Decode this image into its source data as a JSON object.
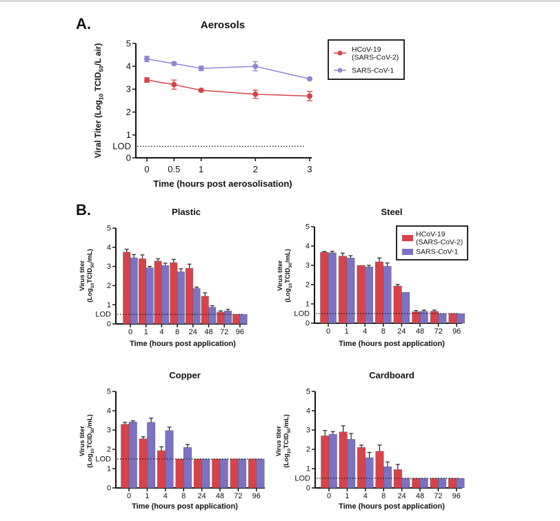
{
  "panel_labels": [
    "A.",
    "B."
  ],
  "colors": {
    "sars_cov_2": "#d8434b",
    "sars_cov_1": "#7b72c4",
    "sars_cov_1_line": "#8f86d6"
  },
  "chart_data": [
    {
      "type": "line",
      "title": "Aerosols",
      "xlabel": "Time (hours post aerosolisation)",
      "ylabel": [
        [
          "Viral Titer (Log",
          ""
        ],
        [
          "10",
          "sub"
        ],
        [
          " TCID",
          ""
        ],
        [
          "50",
          "sub"
        ],
        [
          "/L air)",
          ""
        ]
      ],
      "x": [
        0,
        0.5,
        1,
        2,
        3
      ],
      "xticks": [
        "0",
        "0.5",
        "1",
        "2",
        "3"
      ],
      "yticks": [
        "0",
        "1",
        "2",
        "3",
        "4",
        "5"
      ],
      "ylim": [
        0,
        5
      ],
      "lod": {
        "label": "LOD",
        "value": 0.5
      },
      "legend": "top-right",
      "series": [
        {
          "name": "HCoV-19\n(SARS-CoV-2)",
          "values": [
            3.4,
            3.2,
            2.95,
            2.78,
            2.7
          ],
          "error": [
            0.1,
            0.2,
            0.05,
            0.18,
            0.2
          ]
        },
        {
          "name": "SARS-CoV-1",
          "values": [
            4.32,
            4.12,
            3.91,
            4.0,
            3.45
          ],
          "error": [
            0.12,
            0.06,
            0.1,
            0.2,
            0.04
          ]
        }
      ]
    },
    {
      "type": "bar",
      "title": "Plastic",
      "xlabel": "Time (hours post application)",
      "ylabel": [
        [
          [
            "Virus titer",
            ""
          ]
        ],
        [
          [
            "(Log",
            ""
          ],
          [
            "10",
            "sub"
          ],
          [
            "TCID",
            ""
          ],
          [
            "50",
            "sub"
          ],
          [
            "/mL)",
            ""
          ]
        ]
      ],
      "categories": [
        "0",
        "1",
        "4",
        "8",
        "24",
        "48",
        "72",
        "96"
      ],
      "yticks": [
        "0",
        "1",
        "2",
        "3",
        "4",
        "5"
      ],
      "ylim": [
        0,
        5
      ],
      "lod": {
        "label": "LOD",
        "value": 0.5
      },
      "series": [
        {
          "name": "HCoV-19\n(SARS-CoV-2)",
          "values": [
            3.75,
            3.4,
            3.28,
            3.2,
            2.9,
            1.45,
            0.62,
            0.5
          ],
          "error": [
            0.15,
            0.2,
            0.12,
            0.17,
            0.22,
            0.17,
            0.06,
            0
          ]
        },
        {
          "name": "SARS-CoV-1",
          "values": [
            3.45,
            2.93,
            3.05,
            2.72,
            1.85,
            0.87,
            0.68,
            0.5
          ],
          "error": [
            0.17,
            0.07,
            0.12,
            0.16,
            0.07,
            0.08,
            0.08,
            0
          ]
        }
      ]
    },
    {
      "type": "bar",
      "title": "Steel",
      "xlabel": "Time (hours post application)",
      "ylabel": [
        [
          [
            "Virus titer",
            ""
          ]
        ],
        [
          [
            "(Log",
            ""
          ],
          [
            "10",
            "sub"
          ],
          [
            "TCID",
            ""
          ],
          [
            "50",
            "sub"
          ],
          [
            "/mL)",
            ""
          ]
        ]
      ],
      "categories": [
        "0",
        "1",
        "4",
        "8",
        "24",
        "48",
        "72",
        "96"
      ],
      "yticks": [
        "0",
        "1",
        "2",
        "3",
        "4",
        "5"
      ],
      "ylim": [
        0,
        5
      ],
      "lod": {
        "label": "LOD",
        "value": 0.5
      },
      "legend": "top-right",
      "series": [
        {
          "name": "HCoV-19\n(SARS-CoV-2)",
          "values": [
            3.68,
            3.48,
            3.0,
            3.18,
            1.93,
            0.6,
            0.62,
            0.5
          ],
          "error": [
            0.04,
            0.15,
            0,
            0.2,
            0.08,
            0.06,
            0.06,
            0
          ]
        },
        {
          "name": "SARS-CoV-1",
          "values": [
            3.65,
            3.38,
            2.92,
            2.95,
            1.6,
            0.62,
            0.5,
            0.5
          ],
          "error": [
            0.08,
            0.12,
            0.08,
            0.17,
            0,
            0.06,
            0,
            0
          ]
        }
      ]
    },
    {
      "type": "bar",
      "title": "Copper",
      "xlabel": "Time (hours post application)",
      "ylabel": [
        [
          [
            "Virus titer",
            ""
          ]
        ],
        [
          [
            "(Log",
            ""
          ],
          [
            "10",
            "sub"
          ],
          [
            "TCID",
            ""
          ],
          [
            "50",
            "sub"
          ],
          [
            "/mL)",
            ""
          ]
        ]
      ],
      "categories": [
        "0",
        "1",
        "4",
        "8",
        "24",
        "48",
        "72",
        "96"
      ],
      "yticks": [
        "0",
        "1",
        "2",
        "3",
        "4",
        "5"
      ],
      "ylim": [
        0,
        5
      ],
      "lod": {
        "label": "LOD",
        "value": 1.5
      },
      "series": [
        {
          "name": "HCoV-19\n(SARS-CoV-2)",
          "values": [
            3.3,
            2.55,
            1.93,
            1.5,
            1.5,
            1.5,
            1.5,
            1.5
          ],
          "error": [
            0.1,
            0.1,
            0.2,
            0,
            0,
            0,
            0,
            0
          ]
        },
        {
          "name": "SARS-CoV-1",
          "values": [
            3.42,
            3.4,
            2.97,
            2.1,
            1.5,
            1.5,
            1.5,
            1.5
          ],
          "error": [
            0.06,
            0.22,
            0.18,
            0.15,
            0,
            0,
            0,
            0
          ]
        }
      ]
    },
    {
      "type": "bar",
      "title": "Cardboard",
      "xlabel": "Time (hours post application)",
      "ylabel": [
        [
          [
            "Virus titer",
            ""
          ]
        ],
        [
          [
            "(Log",
            ""
          ],
          [
            "10",
            "sub"
          ],
          [
            "TCID",
            ""
          ],
          [
            "50",
            "sub"
          ],
          [
            "/mL)",
            ""
          ]
        ]
      ],
      "categories": [
        "0",
        "1",
        "4",
        "8",
        "24",
        "48",
        "72",
        "96"
      ],
      "yticks": [
        "0",
        "1",
        "2",
        "3",
        "4",
        "5"
      ],
      "ylim": [
        0,
        5
      ],
      "lod": {
        "label": "LOD",
        "value": 0.5
      },
      "series": [
        {
          "name": "HCoV-19\n(SARS-CoV-2)",
          "values": [
            2.7,
            2.9,
            2.1,
            1.9,
            0.95,
            0.5,
            0.5,
            0.5
          ],
          "error": [
            0.28,
            0.32,
            0.12,
            0.32,
            0.27,
            0,
            0,
            0
          ]
        },
        {
          "name": "SARS-CoV-1",
          "values": [
            2.78,
            2.52,
            1.57,
            1.1,
            0.5,
            0.5,
            0.5,
            0.5
          ],
          "error": [
            0.14,
            0.3,
            0.27,
            0.25,
            0,
            0,
            0,
            0
          ]
        }
      ]
    }
  ]
}
